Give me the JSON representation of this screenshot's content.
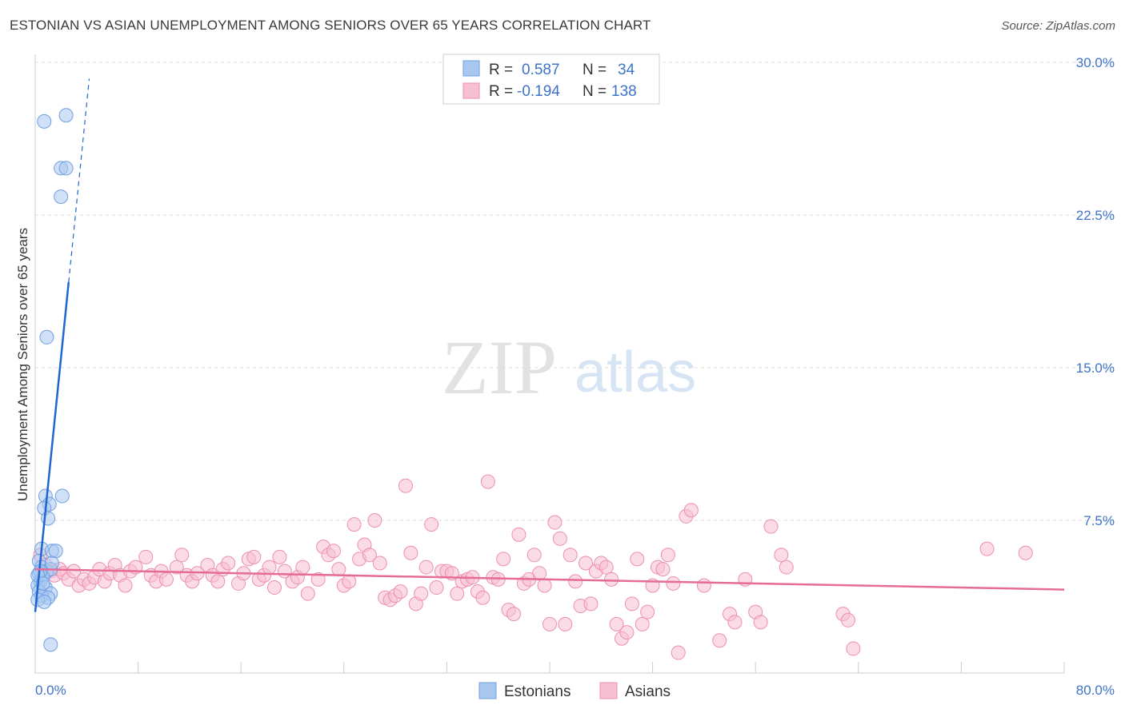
{
  "title": "ESTONIAN VS ASIAN UNEMPLOYMENT AMONG SENIORS OVER 65 YEARS CORRELATION CHART",
  "source": "Source: ZipAtlas.com",
  "watermark": {
    "zip": "ZIP",
    "atlas": "atlas"
  },
  "colors": {
    "estonians_fill": "#a9c8f0",
    "estonians_stroke": "#6f9fe0",
    "estonians_line": "#1f66d1",
    "asians_fill": "#f7bfd2",
    "asians_stroke": "#ec8fb0",
    "asians_line": "#e56b98",
    "grid": "#dcdcdc",
    "axis_text": "#3d73c7"
  },
  "legend": {
    "rows": [
      {
        "r_label": "R =",
        "r_value": "0.587",
        "n_label": "N =",
        "n_value": "34"
      },
      {
        "r_label": "R =",
        "r_value": "-0.194",
        "n_label": "N =",
        "n_value": "138"
      }
    ]
  },
  "chart_data": {
    "type": "scatter",
    "title": "ESTONIAN VS ASIAN UNEMPLOYMENT AMONG SENIORS OVER 65 YEARS CORRELATION CHART",
    "xlabel": "",
    "ylabel": "Unemployment Among Seniors over 65 years",
    "xlim": [
      0,
      80
    ],
    "ylim": [
      0,
      30
    ],
    "x_tick_labels": [
      "0.0%",
      "80.0%"
    ],
    "y_ticks": [
      7.5,
      15.0,
      22.5,
      30.0
    ],
    "y_tick_labels": [
      "7.5%",
      "15.0%",
      "22.5%",
      "30.0%"
    ],
    "grid": true,
    "series": [
      {
        "name": "Estonians",
        "R": 0.587,
        "N": 34,
        "trend": {
          "x0": 0.0,
          "y0": 3.0,
          "x1": 2.6,
          "y1": 19.2,
          "dashed_to_x": 4.2,
          "dashed_to_y": 29.2
        },
        "points": [
          [
            0.7,
            27.1
          ],
          [
            2.4,
            27.4
          ],
          [
            2.0,
            24.8
          ],
          [
            2.4,
            24.8
          ],
          [
            2.0,
            23.4
          ],
          [
            0.9,
            16.5
          ],
          [
            2.1,
            8.7
          ],
          [
            0.8,
            8.7
          ],
          [
            1.1,
            8.3
          ],
          [
            0.7,
            8.1
          ],
          [
            1.0,
            7.6
          ],
          [
            0.5,
            6.1
          ],
          [
            1.3,
            6.0
          ],
          [
            1.6,
            6.0
          ],
          [
            0.3,
            5.5
          ],
          [
            0.5,
            5.2
          ],
          [
            0.9,
            5.0
          ],
          [
            1.2,
            5.1
          ],
          [
            0.3,
            4.9
          ],
          [
            0.6,
            4.7
          ],
          [
            0.4,
            4.5
          ],
          [
            0.2,
            4.3
          ],
          [
            0.8,
            4.2
          ],
          [
            0.3,
            4.0
          ],
          [
            1.2,
            3.9
          ],
          [
            0.5,
            3.8
          ],
          [
            1.0,
            3.7
          ],
          [
            0.2,
            3.6
          ],
          [
            0.7,
            3.5
          ],
          [
            1.3,
            5.4
          ],
          [
            0.4,
            5.0
          ],
          [
            0.2,
            4.8
          ],
          [
            0.6,
            4.4
          ],
          [
            1.2,
            1.4
          ]
        ]
      },
      {
        "name": "Asians",
        "R": -0.194,
        "N": 138,
        "trend": {
          "x0": 0.0,
          "y0": 5.1,
          "x1": 80.0,
          "y1": 4.1
        },
        "points": [
          [
            0.4,
            5.8
          ],
          [
            0.8,
            5.3
          ],
          [
            1.2,
            5.0
          ],
          [
            1.5,
            4.8
          ],
          [
            1.9,
            5.1
          ],
          [
            2.2,
            4.9
          ],
          [
            2.6,
            4.6
          ],
          [
            3.0,
            5.0
          ],
          [
            3.4,
            4.3
          ],
          [
            3.8,
            4.6
          ],
          [
            4.2,
            4.4
          ],
          [
            4.6,
            4.7
          ],
          [
            5.0,
            5.1
          ],
          [
            5.4,
            4.5
          ],
          [
            5.8,
            4.9
          ],
          [
            6.2,
            5.3
          ],
          [
            6.6,
            4.8
          ],
          [
            7.0,
            4.3
          ],
          [
            7.4,
            5.0
          ],
          [
            7.8,
            5.2
          ],
          [
            8.6,
            5.7
          ],
          [
            9.0,
            4.8
          ],
          [
            9.4,
            4.5
          ],
          [
            9.8,
            5.0
          ],
          [
            10.2,
            4.6
          ],
          [
            11.0,
            5.2
          ],
          [
            11.4,
            5.8
          ],
          [
            11.8,
            4.8
          ],
          [
            12.2,
            4.5
          ],
          [
            12.6,
            4.9
          ],
          [
            13.4,
            5.3
          ],
          [
            13.8,
            4.8
          ],
          [
            14.2,
            4.5
          ],
          [
            14.6,
            5.1
          ],
          [
            15.0,
            5.4
          ],
          [
            15.8,
            4.4
          ],
          [
            16.2,
            4.9
          ],
          [
            16.6,
            5.6
          ],
          [
            17.0,
            5.7
          ],
          [
            17.4,
            4.6
          ],
          [
            17.8,
            4.8
          ],
          [
            18.2,
            5.2
          ],
          [
            18.6,
            4.2
          ],
          [
            19.0,
            5.7
          ],
          [
            19.4,
            5.0
          ],
          [
            20.0,
            4.5
          ],
          [
            20.4,
            4.7
          ],
          [
            20.8,
            5.2
          ],
          [
            21.2,
            3.9
          ],
          [
            22.0,
            4.6
          ],
          [
            22.4,
            6.2
          ],
          [
            22.8,
            5.8
          ],
          [
            23.2,
            6.0
          ],
          [
            23.6,
            5.1
          ],
          [
            24.0,
            4.3
          ],
          [
            24.4,
            4.5
          ],
          [
            24.8,
            7.3
          ],
          [
            25.2,
            5.6
          ],
          [
            25.6,
            6.3
          ],
          [
            26.0,
            5.8
          ],
          [
            26.4,
            7.5
          ],
          [
            26.8,
            5.4
          ],
          [
            27.2,
            3.7
          ],
          [
            27.6,
            3.6
          ],
          [
            28.0,
            3.8
          ],
          [
            28.4,
            4.0
          ],
          [
            28.8,
            9.2
          ],
          [
            29.2,
            5.9
          ],
          [
            29.6,
            3.4
          ],
          [
            30.0,
            3.9
          ],
          [
            30.4,
            5.2
          ],
          [
            30.8,
            7.3
          ],
          [
            31.2,
            4.2
          ],
          [
            31.6,
            5.0
          ],
          [
            32.0,
            5.0
          ],
          [
            32.4,
            4.9
          ],
          [
            32.8,
            3.9
          ],
          [
            33.2,
            4.5
          ],
          [
            33.6,
            4.6
          ],
          [
            34.0,
            4.7
          ],
          [
            34.4,
            4.0
          ],
          [
            34.8,
            3.7
          ],
          [
            35.2,
            9.4
          ],
          [
            35.6,
            4.7
          ],
          [
            36.0,
            4.6
          ],
          [
            36.4,
            5.6
          ],
          [
            36.8,
            3.1
          ],
          [
            37.2,
            2.9
          ],
          [
            37.6,
            6.8
          ],
          [
            38.0,
            4.4
          ],
          [
            38.4,
            4.6
          ],
          [
            38.8,
            5.8
          ],
          [
            39.2,
            4.9
          ],
          [
            39.6,
            4.3
          ],
          [
            40.0,
            2.4
          ],
          [
            40.4,
            7.4
          ],
          [
            40.8,
            6.6
          ],
          [
            41.2,
            2.4
          ],
          [
            41.6,
            5.8
          ],
          [
            42.0,
            4.5
          ],
          [
            42.4,
            3.3
          ],
          [
            42.8,
            5.4
          ],
          [
            43.2,
            3.4
          ],
          [
            43.6,
            5.0
          ],
          [
            44.0,
            5.4
          ],
          [
            44.4,
            5.2
          ],
          [
            44.8,
            4.6
          ],
          [
            45.2,
            2.4
          ],
          [
            45.6,
            1.7
          ],
          [
            46.0,
            2.0
          ],
          [
            46.4,
            3.4
          ],
          [
            46.8,
            5.6
          ],
          [
            47.2,
            2.4
          ],
          [
            47.6,
            3.0
          ],
          [
            48.0,
            4.3
          ],
          [
            48.4,
            5.2
          ],
          [
            48.8,
            5.1
          ],
          [
            49.2,
            5.8
          ],
          [
            49.6,
            4.4
          ],
          [
            50.0,
            1.0
          ],
          [
            50.6,
            7.7
          ],
          [
            51.0,
            8.0
          ],
          [
            52.0,
            4.3
          ],
          [
            53.2,
            1.6
          ],
          [
            54.0,
            2.9
          ],
          [
            54.4,
            2.5
          ],
          [
            55.2,
            4.6
          ],
          [
            56.0,
            3.0
          ],
          [
            56.4,
            2.5
          ],
          [
            57.2,
            7.2
          ],
          [
            58.0,
            5.8
          ],
          [
            58.4,
            5.2
          ],
          [
            62.8,
            2.9
          ],
          [
            63.2,
            2.6
          ],
          [
            63.6,
            1.2
          ],
          [
            74.0,
            6.1
          ],
          [
            77.0,
            5.9
          ]
        ]
      }
    ]
  }
}
